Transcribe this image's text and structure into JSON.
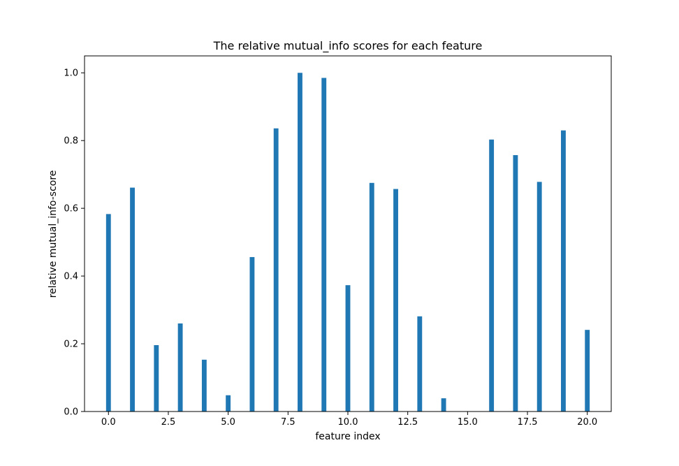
{
  "chart_data": {
    "type": "bar",
    "title": "The relative mutual_info scores for each feature",
    "xlabel": "feature index",
    "ylabel": "relative mutual_info-score",
    "x": [
      0,
      1,
      2,
      3,
      4,
      5,
      6,
      7,
      8,
      9,
      10,
      11,
      12,
      13,
      14,
      15,
      16,
      17,
      18,
      19,
      20
    ],
    "values": [
      0.583,
      0.661,
      0.196,
      0.26,
      0.153,
      0.048,
      0.456,
      0.836,
      1.0,
      0.985,
      0.373,
      0.675,
      0.657,
      0.281,
      0.039,
      0.0,
      0.803,
      0.757,
      0.678,
      0.83,
      0.241
    ],
    "xlim": [
      -1.0,
      21.0
    ],
    "ylim": [
      0.0,
      1.05
    ],
    "xticks": [
      0.0,
      2.5,
      5.0,
      7.5,
      10.0,
      12.5,
      15.0,
      17.5,
      20.0
    ],
    "xtick_labels": [
      "0.0",
      "2.5",
      "5.0",
      "7.5",
      "10.0",
      "12.5",
      "15.0",
      "17.5",
      "20.0"
    ],
    "yticks": [
      0.0,
      0.2,
      0.4,
      0.6,
      0.8,
      1.0
    ],
    "ytick_labels": [
      "0.0",
      "0.2",
      "0.4",
      "0.6",
      "0.8",
      "1.0"
    ],
    "grid": false,
    "bar_color": "#1f77b4"
  }
}
